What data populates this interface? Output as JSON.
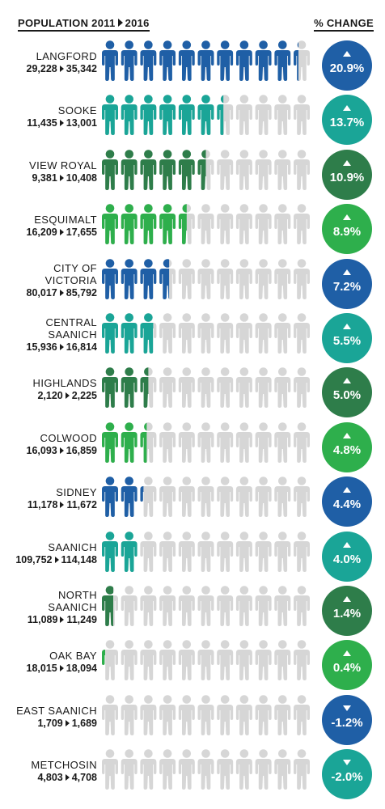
{
  "header": {
    "left_pre": "POPULATION 2011",
    "left_post": "2016",
    "right": "% CHANGE"
  },
  "colors": {
    "blue": "#1F5FA6",
    "teal": "#1AA597",
    "darkgreen": "#2E7D4A",
    "green": "#2EAF4C",
    "grey": "#D6D6D6"
  },
  "chart_data": {
    "type": "pictogram",
    "icons_per_row": 11,
    "rows": [
      {
        "name_lines": [
          "LANGFORD"
        ],
        "pop2011": "29,228",
        "pop2016": "35,342",
        "change": "20.9%",
        "direction": "up",
        "filled": 10.3,
        "color": "blue"
      },
      {
        "name_lines": [
          "SOOKE"
        ],
        "pop2011": "11,435",
        "pop2016": "13,001",
        "change": "13.7%",
        "direction": "up",
        "filled": 6.4,
        "color": "teal"
      },
      {
        "name_lines": [
          "VIEW ROYAL"
        ],
        "pop2011": "9,381",
        "pop2016": "10,408",
        "change": "10.9%",
        "direction": "up",
        "filled": 5.5,
        "color": "darkgreen"
      },
      {
        "name_lines": [
          "ESQUIMALT"
        ],
        "pop2011": "16,209",
        "pop2016": "17,655",
        "change": "8.9%",
        "direction": "up",
        "filled": 4.5,
        "color": "green"
      },
      {
        "name_lines": [
          "CITY OF",
          "VICTORIA"
        ],
        "pop2011": "80,017",
        "pop2016": "85,792",
        "change": "7.2%",
        "direction": "up",
        "filled": 3.6,
        "color": "blue"
      },
      {
        "name_lines": [
          "CENTRAL",
          "SAANICH"
        ],
        "pop2011": "15,936",
        "pop2016": "16,814",
        "change": "5.5%",
        "direction": "up",
        "filled": 2.8,
        "color": "teal"
      },
      {
        "name_lines": [
          "HIGHLANDS"
        ],
        "pop2011": "2,120",
        "pop2016": "2,225",
        "change": "5.0%",
        "direction": "up",
        "filled": 2.5,
        "color": "darkgreen"
      },
      {
        "name_lines": [
          "COLWOOD"
        ],
        "pop2011": "16,093",
        "pop2016": "16,859",
        "change": "4.8%",
        "direction": "up",
        "filled": 2.4,
        "color": "green"
      },
      {
        "name_lines": [
          "SIDNEY"
        ],
        "pop2011": "11,178",
        "pop2016": "11,672",
        "change": "4.4%",
        "direction": "up",
        "filled": 2.2,
        "color": "blue"
      },
      {
        "name_lines": [
          "SAANICH"
        ],
        "pop2011": "109,752",
        "pop2016": "114,148",
        "change": "4.0%",
        "direction": "up",
        "filled": 2.0,
        "color": "teal"
      },
      {
        "name_lines": [
          "NORTH",
          "SAANICH"
        ],
        "pop2011": "11,089",
        "pop2016": "11,249",
        "change": "1.4%",
        "direction": "up",
        "filled": 0.7,
        "color": "darkgreen"
      },
      {
        "name_lines": [
          "OAK BAY"
        ],
        "pop2011": "18,015",
        "pop2016": "18,094",
        "change": "0.4%",
        "direction": "up",
        "filled": 0.2,
        "color": "green"
      },
      {
        "name_lines": [
          "EAST SAANICH"
        ],
        "pop2011": "1,709",
        "pop2016": "1,689",
        "change": "-1.2%",
        "direction": "down",
        "filled": 0,
        "color": "blue"
      },
      {
        "name_lines": [
          "METCHOSIN"
        ],
        "pop2011": "4,803",
        "pop2016": "4,708",
        "change": "-2.0%",
        "direction": "down",
        "filled": 0,
        "color": "teal"
      }
    ]
  }
}
